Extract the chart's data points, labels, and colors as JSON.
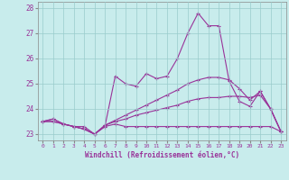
{
  "xlabel": "Windchill (Refroidissement éolien,°C)",
  "bg_color": "#c8ecec",
  "line_color": "#993399",
  "grid_color": "#aadddd",
  "ylim": [
    22.75,
    28.25
  ],
  "xlim": [
    -0.5,
    23.5
  ],
  "yticks": [
    23,
    24,
    25,
    26,
    27,
    28
  ],
  "xticks": [
    0,
    1,
    2,
    3,
    4,
    5,
    6,
    7,
    8,
    9,
    10,
    11,
    12,
    13,
    14,
    15,
    16,
    17,
    18,
    19,
    20,
    21,
    22,
    23
  ],
  "series": [
    [
      23.5,
      23.6,
      23.4,
      23.3,
      23.3,
      23.0,
      23.3,
      25.3,
      25.0,
      24.9,
      25.4,
      25.2,
      25.3,
      26.0,
      27.0,
      27.8,
      27.3,
      27.3,
      25.1,
      24.3,
      24.1,
      24.7,
      24.0,
      23.1
    ],
    [
      23.5,
      23.6,
      23.4,
      23.3,
      23.2,
      23.0,
      23.3,
      23.4,
      23.3,
      23.3,
      23.3,
      23.3,
      23.3,
      23.3,
      23.3,
      23.3,
      23.3,
      23.3,
      23.3,
      23.3,
      23.3,
      23.3,
      23.3,
      23.1
    ],
    [
      23.5,
      23.5,
      23.4,
      23.3,
      23.2,
      23.0,
      23.35,
      23.5,
      23.6,
      23.75,
      23.85,
      23.95,
      24.05,
      24.15,
      24.3,
      24.4,
      24.45,
      24.45,
      24.5,
      24.5,
      24.45,
      24.55,
      24.0,
      23.1
    ],
    [
      23.5,
      23.5,
      23.4,
      23.3,
      23.2,
      23.0,
      23.35,
      23.55,
      23.75,
      23.95,
      24.15,
      24.35,
      24.55,
      24.75,
      25.0,
      25.15,
      25.25,
      25.25,
      25.15,
      24.8,
      24.35,
      24.7,
      24.0,
      23.1
    ]
  ]
}
